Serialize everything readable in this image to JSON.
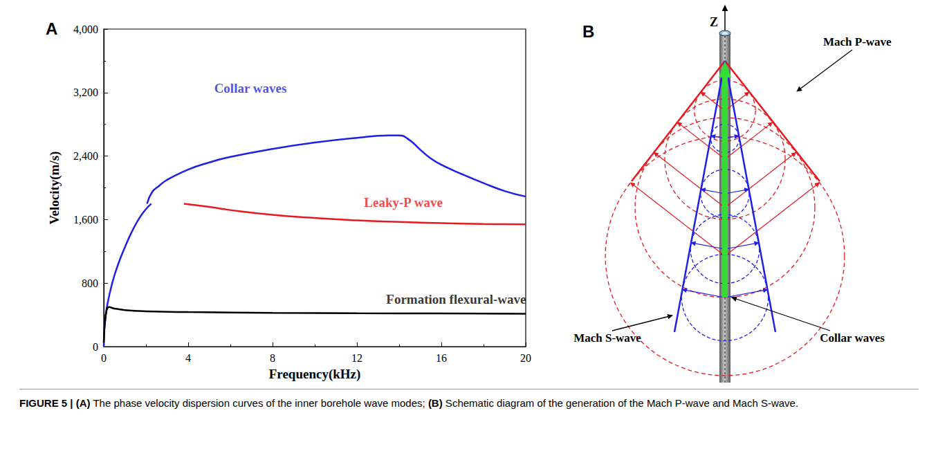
{
  "chart_data": {
    "type": "line",
    "x_label": "Frequency(kHz)",
    "y_label": "Velocity(m/s)",
    "xlim": [
      0,
      20
    ],
    "xticks": [
      0,
      4,
      8,
      12,
      16,
      20
    ],
    "ylim": [
      0,
      4000
    ],
    "yticks": [
      0,
      800,
      1600,
      2400,
      3200,
      4000
    ],
    "grid": false,
    "series": [
      {
        "name": "Collar waves",
        "color": "#1f1fe8",
        "label_x": 6.95,
        "label_y": 3255,
        "x": [
          0,
          0.05,
          0.15,
          0.4,
          0.7,
          1.0,
          1.3,
          1.6,
          1.9,
          2.25,
          2.25,
          2.05,
          2.3,
          2.6,
          3,
          4,
          5,
          6,
          8,
          10,
          12,
          13.5,
          14,
          14.5,
          15,
          15.5,
          16,
          17,
          18,
          19,
          20
        ],
        "values": [
          0,
          300,
          500,
          800,
          1050,
          1250,
          1430,
          1580,
          1700,
          1800,
          null,
          1800,
          1950,
          2020,
          2100,
          2230,
          2320,
          2390,
          2490,
          2570,
          2630,
          2660,
          2660,
          2600,
          2480,
          2370,
          2290,
          2170,
          2060,
          1960,
          1890
        ]
      },
      {
        "name": "Leaky-P wave",
        "color": "#e8191e",
        "label_x": 14.2,
        "label_y": 1820,
        "x": [
          3.8,
          5,
          6,
          8,
          10,
          12,
          14,
          16,
          18,
          20
        ],
        "values": [
          1800,
          1760,
          1720,
          1660,
          1620,
          1590,
          1570,
          1555,
          1545,
          1540
        ]
      },
      {
        "name": "Formation flexural-wave",
        "color": "#000000",
        "label_x": 16.7,
        "label_y": 600,
        "x": [
          0,
          0.1,
          0.25,
          0.5,
          1,
          2,
          4,
          8,
          12,
          16,
          20
        ],
        "values": [
          50,
          400,
          500,
          480,
          460,
          445,
          435,
          425,
          420,
          418,
          415
        ]
      }
    ]
  },
  "panel_a": {
    "letter": "A"
  },
  "diagram": {
    "letter": "B",
    "axis": "Z",
    "mach_p": "Mach P-wave",
    "mach_s": "Mach S-wave",
    "collar": "Collar waves"
  },
  "caption": [
    {
      "text": "FIGURE 5 | ",
      "bold": true
    },
    {
      "text": "(A)",
      "bold": true
    },
    {
      "text": " The phase velocity dispersion curves of the inner borehole wave modes; ",
      "bold": false
    },
    {
      "text": "(B)",
      "bold": true
    },
    {
      "text": " Schematic diagram of the generation of the Mach P-wave and Mach S-wave.",
      "bold": false
    }
  ]
}
